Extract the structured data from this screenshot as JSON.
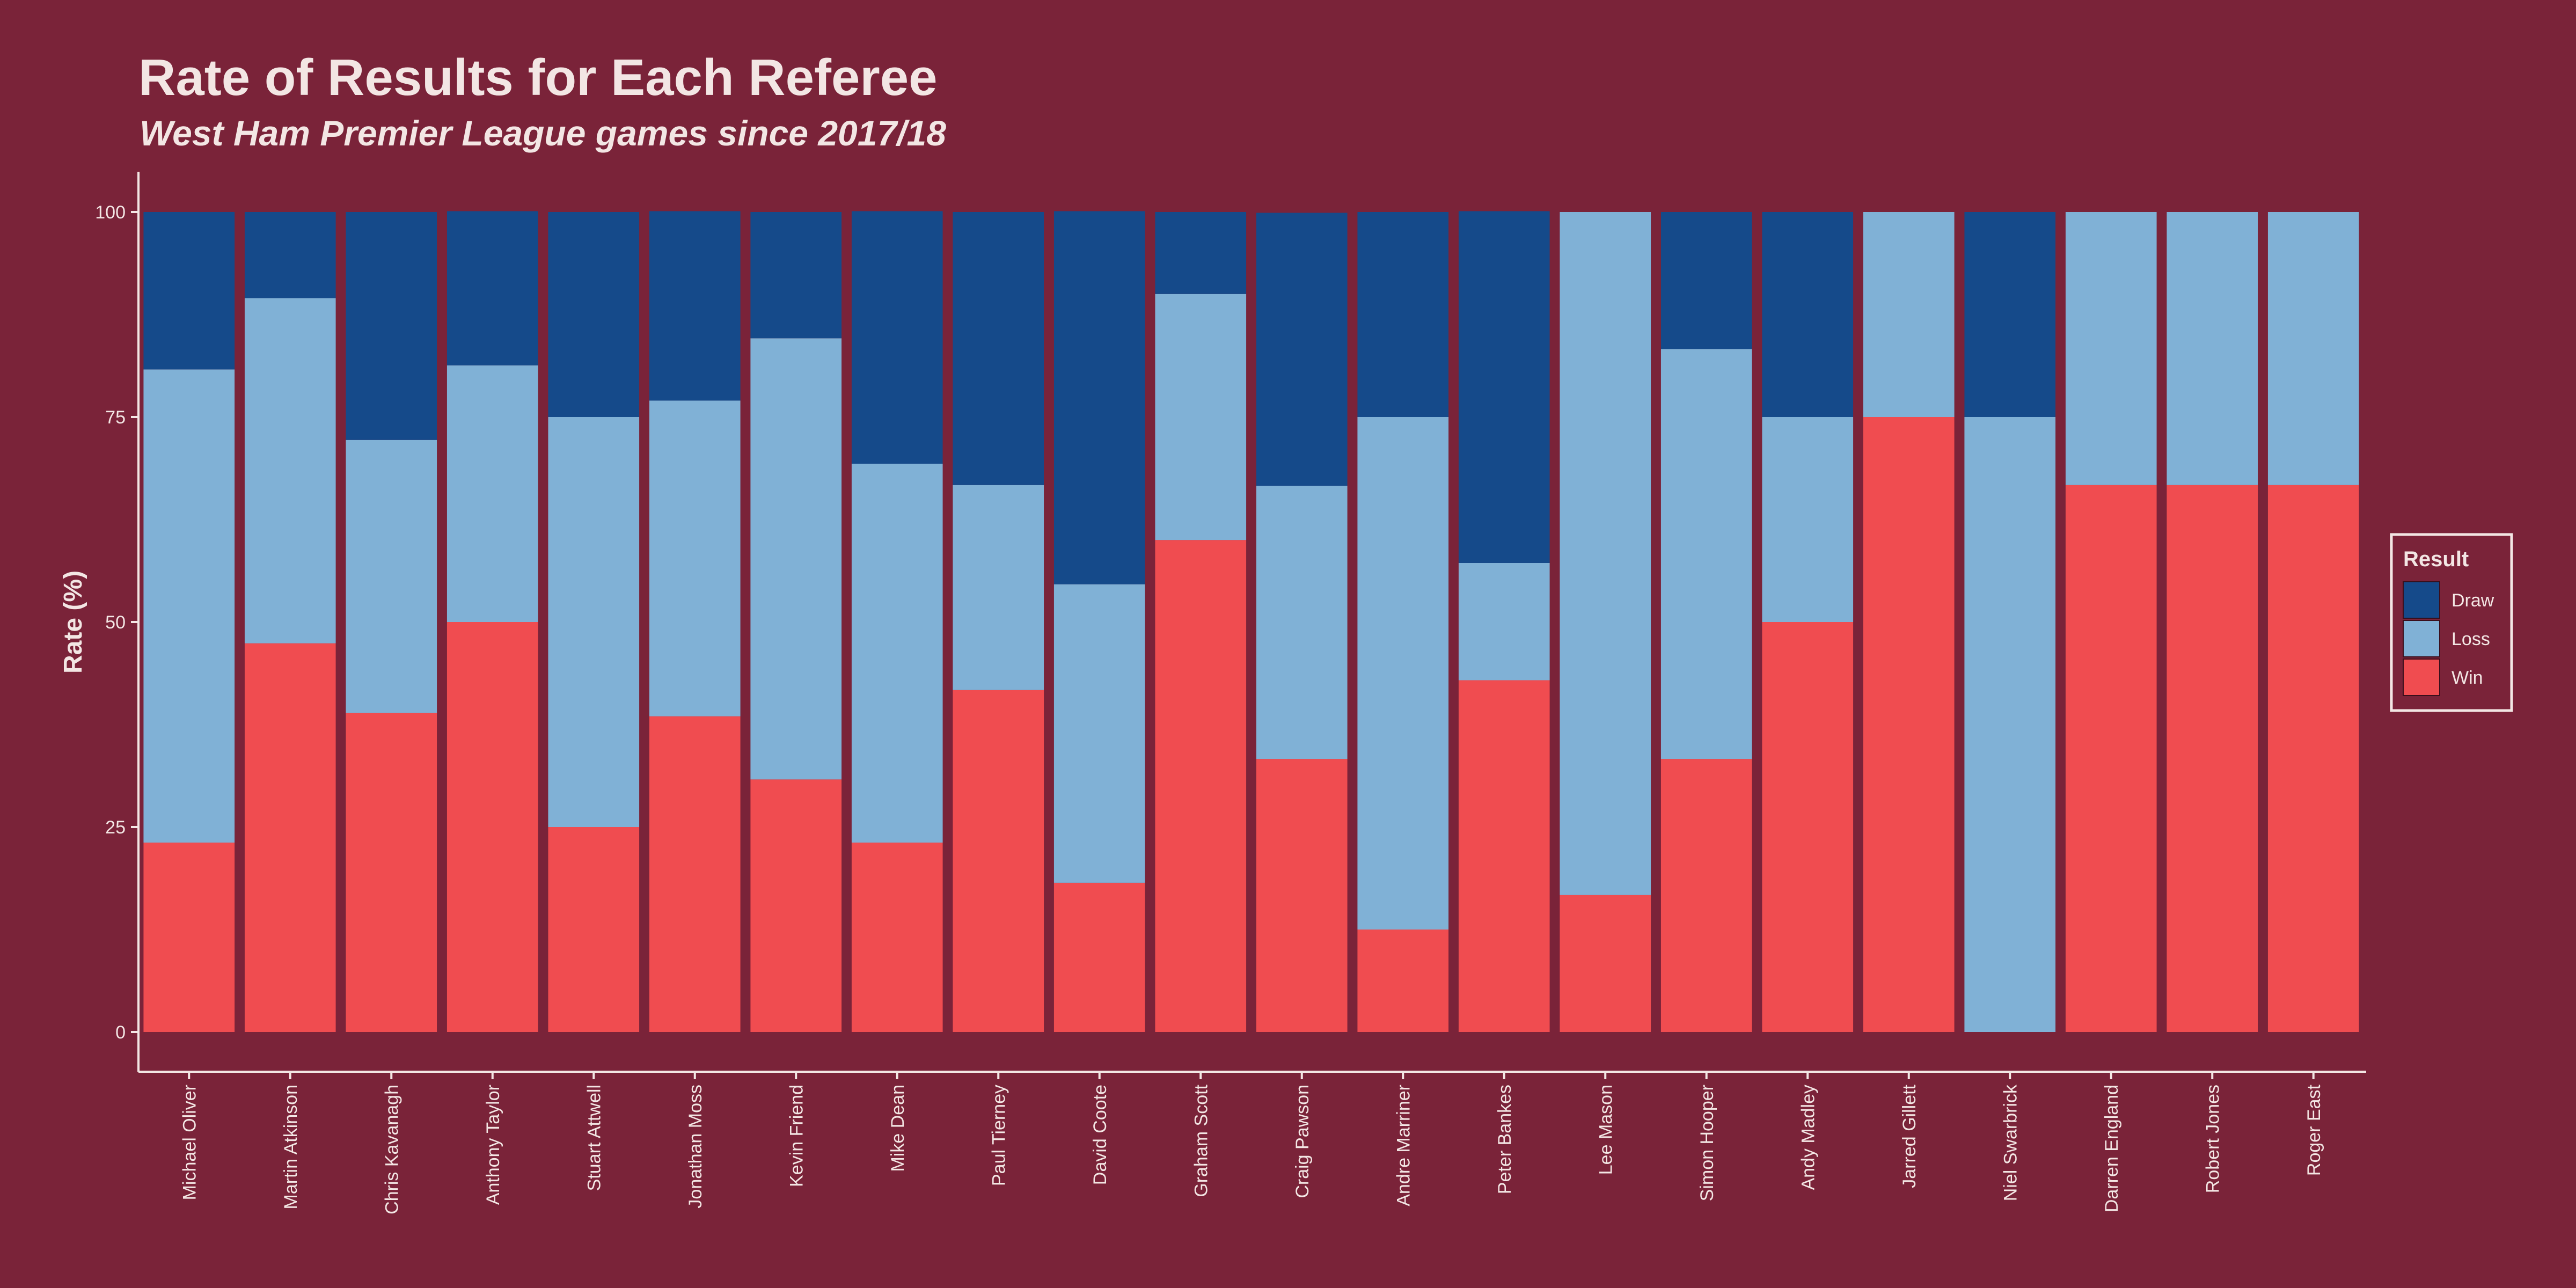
{
  "title": "Rate of Results for Each Referee",
  "subtitle": "West Ham Premier League games since 2017/18",
  "colors": {
    "background": "#7a2339",
    "Draw": "#154a8a",
    "Loss": "#80b1d6",
    "Win": "#f04c50",
    "text": "#f3e6e4"
  },
  "chart_data": {
    "type": "bar",
    "stacked": true,
    "title": "Rate of Results for Each Referee",
    "subtitle": "West Ham Premier League games since 2017/18",
    "xlabel": "",
    "ylabel": "Rate (%)",
    "ylim": [
      0,
      100
    ],
    "yticks": [
      0,
      25,
      50,
      75,
      100
    ],
    "legend_title": "Result",
    "legend_position": "right",
    "grid": false,
    "categories": [
      "Michael Oliver",
      "Martin Atkinson",
      "Chris Kavanagh",
      "Anthony Taylor",
      "Stuart Attwell",
      "Jonathan Moss",
      "Kevin Friend",
      "Mike Dean",
      "Paul Tierney",
      "David Coote",
      "Graham Scott",
      "Craig Pawson",
      "Andre Marriner",
      "Peter Bankes",
      "Lee Mason",
      "Simon Hooper",
      "Andy Madley",
      "Jarred Gillett",
      "Niel Swarbrick",
      "Darren England",
      "Robert Jones",
      "Roger East"
    ],
    "series": [
      {
        "name": "Draw",
        "values": [
          19.2,
          10.5,
          27.8,
          18.8,
          25,
          23.1,
          15.4,
          30.8,
          33.3,
          45.5,
          10,
          33.3,
          25,
          42.9,
          0,
          16.7,
          25,
          0,
          25,
          0,
          0,
          0
        ]
      },
      {
        "name": "Loss",
        "values": [
          57.7,
          42.1,
          33.3,
          31.3,
          50,
          38.5,
          53.8,
          46.2,
          25,
          36.4,
          30,
          33.3,
          62.5,
          14.3,
          83.3,
          50,
          25,
          25,
          75,
          33.3,
          33.3,
          33.3
        ]
      },
      {
        "name": "Win",
        "values": [
          23.1,
          47.4,
          38.9,
          50,
          25,
          38.5,
          30.8,
          23.1,
          41.7,
          18.2,
          60,
          33.3,
          12.5,
          42.9,
          16.7,
          33.3,
          50,
          75,
          0,
          66.7,
          66.7,
          66.7
        ]
      }
    ]
  }
}
